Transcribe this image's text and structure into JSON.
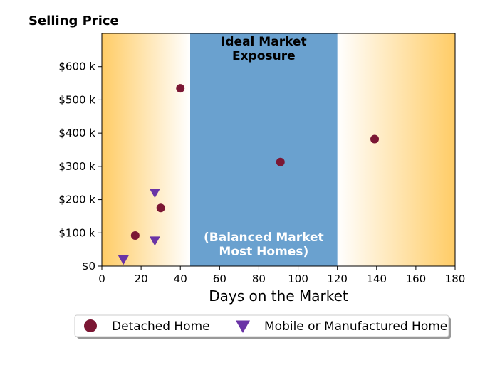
{
  "chart_data": {
    "type": "scatter",
    "title": "Selling Price",
    "xlabel": "Days on the Market",
    "ylabel": "",
    "xlim": [
      0,
      180
    ],
    "ylim": [
      0,
      700000
    ],
    "xticks": [
      0,
      20,
      40,
      60,
      80,
      100,
      120,
      140,
      160,
      180
    ],
    "xtick_labels": [
      "0",
      "20",
      "40",
      "60",
      "80",
      "100",
      "120",
      "140",
      "160",
      "180"
    ],
    "yticks": [
      0,
      100000,
      200000,
      300000,
      400000,
      500000,
      600000
    ],
    "ytick_labels": [
      "$0",
      "$100 k",
      "$200 k",
      "$300 k",
      "$400 k",
      "$500 k",
      "$600 k"
    ],
    "grid": false,
    "legend_position": "bottom-center",
    "shaded_band": {
      "x_range": [
        45,
        120
      ],
      "color": "#6aa1cf",
      "label_top_lines": [
        "Ideal Market",
        "Exposure"
      ],
      "label_bottom_lines": [
        "(Balanced Market",
        "Most Homes)"
      ]
    },
    "background_gradient": {
      "edge_color": "#ffcc66",
      "center_color": "#ffffff"
    },
    "series": [
      {
        "name": "Detached Home",
        "marker": "circle",
        "color": "#7b1734",
        "points": [
          {
            "x": 17,
            "y": 92000
          },
          {
            "x": 30,
            "y": 175000
          },
          {
            "x": 40,
            "y": 535000
          },
          {
            "x": 91,
            "y": 313000
          },
          {
            "x": 139,
            "y": 382000
          }
        ]
      },
      {
        "name": "Mobile or Manufactured Home",
        "marker": "triangle-down",
        "color": "#6a34a6",
        "points": [
          {
            "x": 11,
            "y": 20000
          },
          {
            "x": 27,
            "y": 77000
          },
          {
            "x": 27,
            "y": 221000
          }
        ]
      }
    ]
  }
}
